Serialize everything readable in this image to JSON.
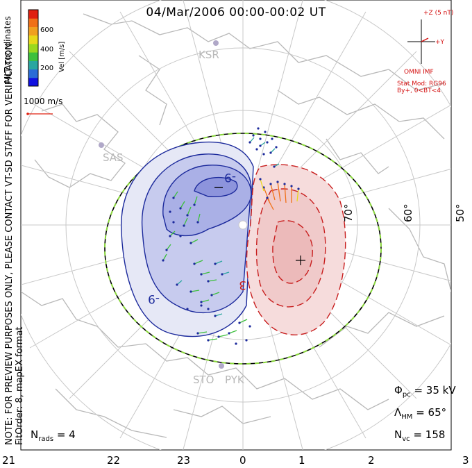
{
  "title": "04/Mar/2006 00:00-00:02 UT",
  "coordinates_label": "MLT coordinates",
  "side_note_line1": "NOTE: FOR PREVIEW PURPOSES ONLY, PLEASE CONTACT VT-SD STAFF FOR VERIFICATION.",
  "side_note_line2": "FitOrder: 8, mapEX format",
  "colorbar": {
    "label": "Vel [m/s]",
    "ticks": [
      "600",
      "400",
      "200"
    ],
    "colors": [
      "#1010e0",
      "#2a6cd6",
      "#2aa6a0",
      "#3cc03c",
      "#9ad81e",
      "#e8d81a",
      "#f0a020",
      "#f07018",
      "#e02010"
    ]
  },
  "scale_vector": "1000 m/s",
  "imf": {
    "z_label": "+Z (5 nT)",
    "y_label": "+Y",
    "source": "OMNI IMF",
    "model": "Stat Mod: RG96",
    "condition": "By+, 0<BT<4"
  },
  "stations": [
    "KSR",
    "SAS",
    "STO",
    "PYK"
  ],
  "latitude_labels": [
    "70°",
    "60°",
    "50°"
  ],
  "contour_labels": [
    "-9",
    "-9",
    "3"
  ],
  "stats": {
    "phi_pc_sym": "Φ",
    "phi_pc_sub": "pc",
    "phi_pc_value": "= 35 kV",
    "lambda_hm_sym": "Λ",
    "lambda_hm_sub": "HM",
    "lambda_hm_value": "= 65°",
    "n_vc_sym": "N",
    "n_vc_sub": "vc",
    "n_vc_value": "= 158",
    "n_rads_sym": "N",
    "n_rads_sub": "rads",
    "n_rads_value": "= 4"
  },
  "mlt_ticks": [
    "21",
    "22",
    "23",
    "0",
    "1",
    "2",
    "3"
  ]
}
